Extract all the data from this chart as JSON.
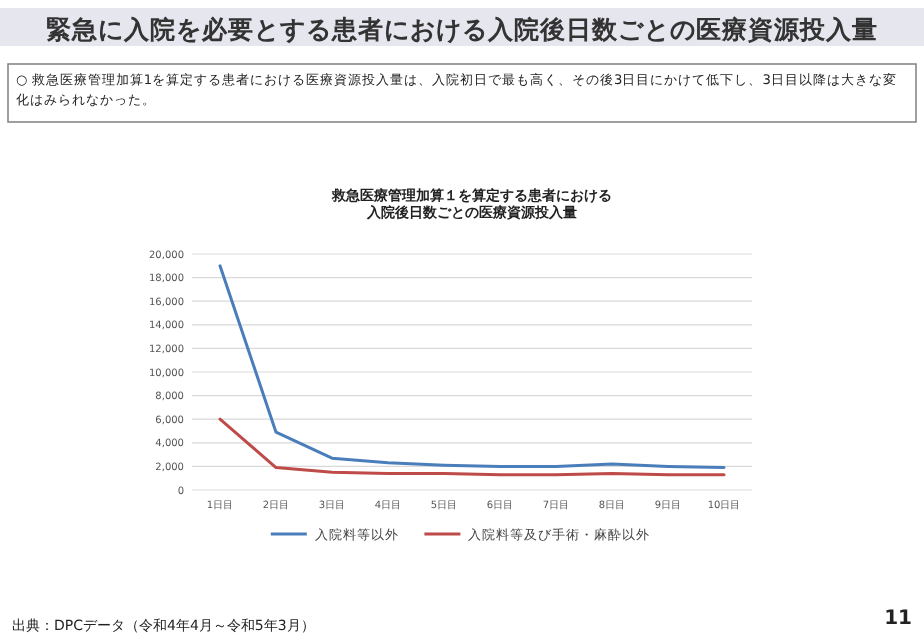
{
  "chart_data": {
    "type": "line",
    "title": "緊急に入院を必要とする患者における入院後日数ごとの医療資源投入量",
    "subtitle": "救急医療管理加算１を算定する患者における入院後日数ごとの医療資源投入量",
    "annotations": [
      "○  救急医療管理加算1を算定する患者における医療資源投入量は、入院初日で最も高く、その後3日目にかけて低下し、3日目以降は大きな変化はみられなかった。",
      "出典：DPCデータ（令和4年4月～令和5年3月）",
      "11"
    ],
    "categories": [
      "1日目",
      "2日目",
      "3日目",
      "4日目",
      "5日目",
      "6日目",
      "7日目",
      "8日目",
      "9日目",
      "10日目"
    ],
    "series": [
      {
        "name": "入院料等以外",
        "color": "#4a7ebb",
        "values": [
          19000,
          4900,
          2700,
          2300,
          2100,
          2000,
          2000,
          2200,
          2000,
          1900
        ]
      },
      {
        "name": "入院料等及び手術・麻酔以外",
        "color": "#be4b48",
        "values": [
          6000,
          1900,
          1500,
          1400,
          1400,
          1300,
          1300,
          1400,
          1300,
          1300
        ]
      }
    ],
    "ylim": [
      0,
      20000
    ],
    "yticks": [
      {
        "value": 0,
        "label": "0"
      },
      {
        "value": 2000,
        "label": "2,000"
      },
      {
        "value": 4000,
        "label": "4,000"
      },
      {
        "value": 6000,
        "label": "6,000"
      },
      {
        "value": 8000,
        "label": "8,000"
      },
      {
        "value": 10000,
        "label": "10,000"
      },
      {
        "value": 12000,
        "label": "12,000"
      },
      {
        "value": 14000,
        "label": "14,000"
      },
      {
        "value": 16000,
        "label": "16,000"
      },
      {
        "value": 18000,
        "label": "18,000"
      },
      {
        "value": 20000,
        "label": "20,000"
      }
    ],
    "grid": "y",
    "legend": "bottom",
    "marker": "none",
    "line_style": "solid"
  }
}
